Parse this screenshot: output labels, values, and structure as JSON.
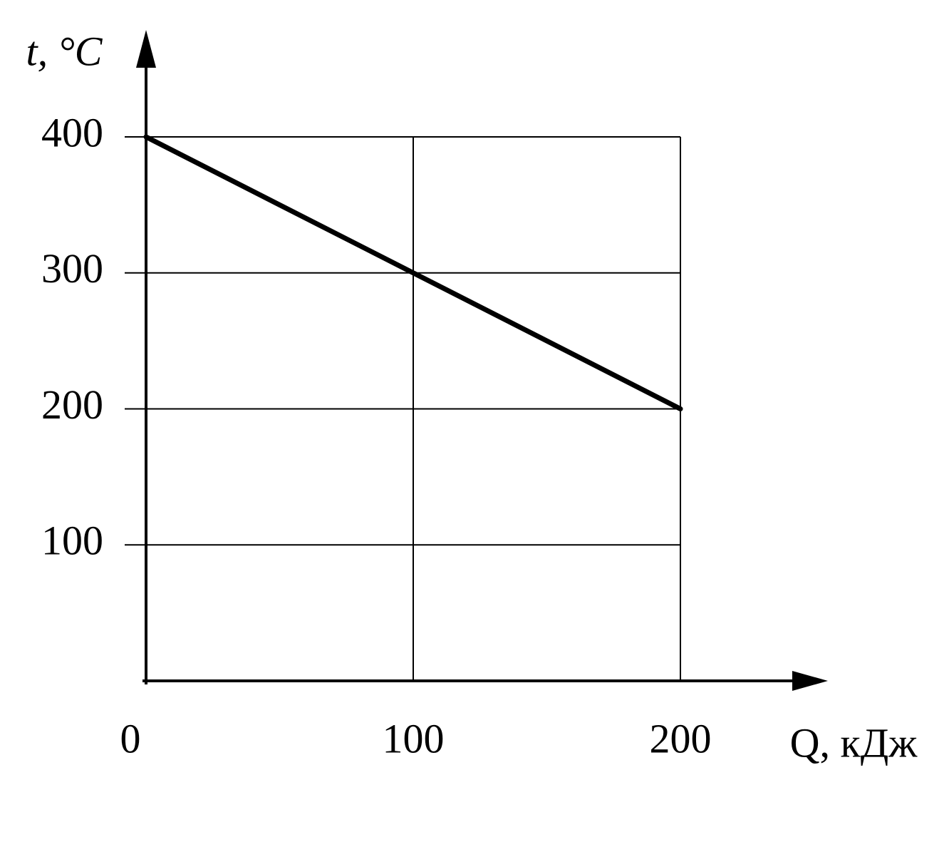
{
  "chart_data": {
    "type": "line",
    "x_label": "Q, кДж",
    "y_label": "t, °C",
    "x": [
      0,
      200
    ],
    "series": [
      {
        "color": "#000000",
        "values": [
          400,
          200
        ]
      }
    ],
    "xlim": [
      0,
      200
    ],
    "xticks": [
      0,
      100,
      200
    ],
    "ylim": [
      0,
      400
    ],
    "yticks": [
      100,
      200,
      300,
      400
    ],
    "grid": true
  }
}
